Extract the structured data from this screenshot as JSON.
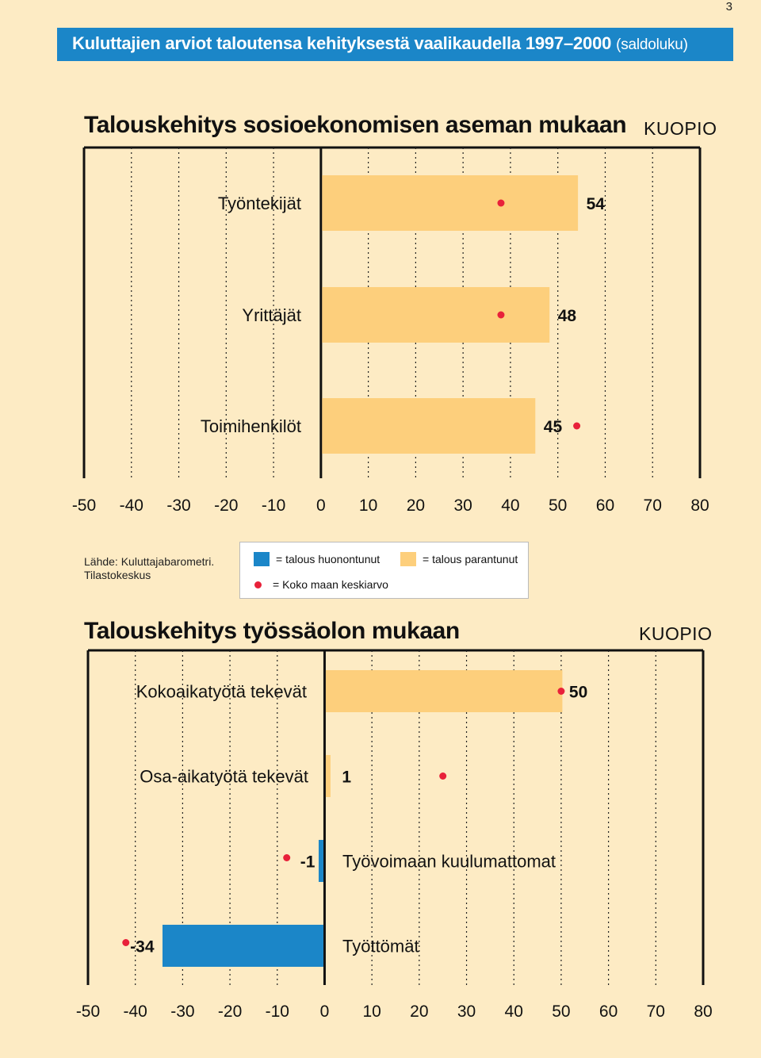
{
  "page_number": "3",
  "banner": {
    "title": "Kuluttajien arviot taloutensa kehityksestä vaalikaudella 1997–2000",
    "suffix": "(saldoluku)"
  },
  "colors": {
    "background": "#fdebc4",
    "banner": "#1b86c8",
    "improved": "#fdcf7c",
    "worsened": "#1b86c8",
    "national_average_dot": "#e8213a"
  },
  "source": {
    "line1": "Lähde: Kuluttajabarometri.",
    "line2": "Tilastokeskus"
  },
  "legend": {
    "worsened": "= talous huonontunut",
    "improved": "= talous parantunut",
    "average": "= Koko maan keskiarvo"
  },
  "chart_data": [
    {
      "type": "bar",
      "orientation": "horizontal",
      "title": "Talouskehitys sosioekonomisen aseman mukaan",
      "region": "KUOPIO",
      "categories": [
        "Työntekijät",
        "Yrittäjät",
        "Toimihenkilöt"
      ],
      "values": [
        54,
        48,
        45
      ],
      "value_labels": [
        "54",
        "48",
        "45"
      ],
      "national_average": [
        38,
        38,
        54
      ],
      "xlim": [
        -50,
        80
      ],
      "xticks": [
        "-50",
        "-40",
        "-30",
        "-20",
        "-10",
        "0",
        "10",
        "20",
        "30",
        "40",
        "50",
        "60",
        "70",
        "80"
      ],
      "grid": "dotted vertical"
    },
    {
      "type": "bar",
      "orientation": "horizontal",
      "title": "Talouskehitys työssäolon mukaan",
      "region": "KUOPIO",
      "categories": [
        "Kokoaikatyötä tekevät",
        "Osa-aikatyötä tekevät",
        "Työvoimaan kuulumattomat",
        "Työttömät"
      ],
      "values": [
        50,
        1,
        -1,
        -34
      ],
      "value_labels": [
        "50",
        "1",
        "-1",
        "-34"
      ],
      "national_average": [
        50,
        25,
        -8,
        -42
      ],
      "xlim": [
        -50,
        80
      ],
      "xticks": [
        "-50",
        "-40",
        "-30",
        "-20",
        "-10",
        "0",
        "10",
        "20",
        "30",
        "40",
        "50",
        "60",
        "70",
        "80"
      ],
      "grid": "dotted vertical"
    }
  ]
}
